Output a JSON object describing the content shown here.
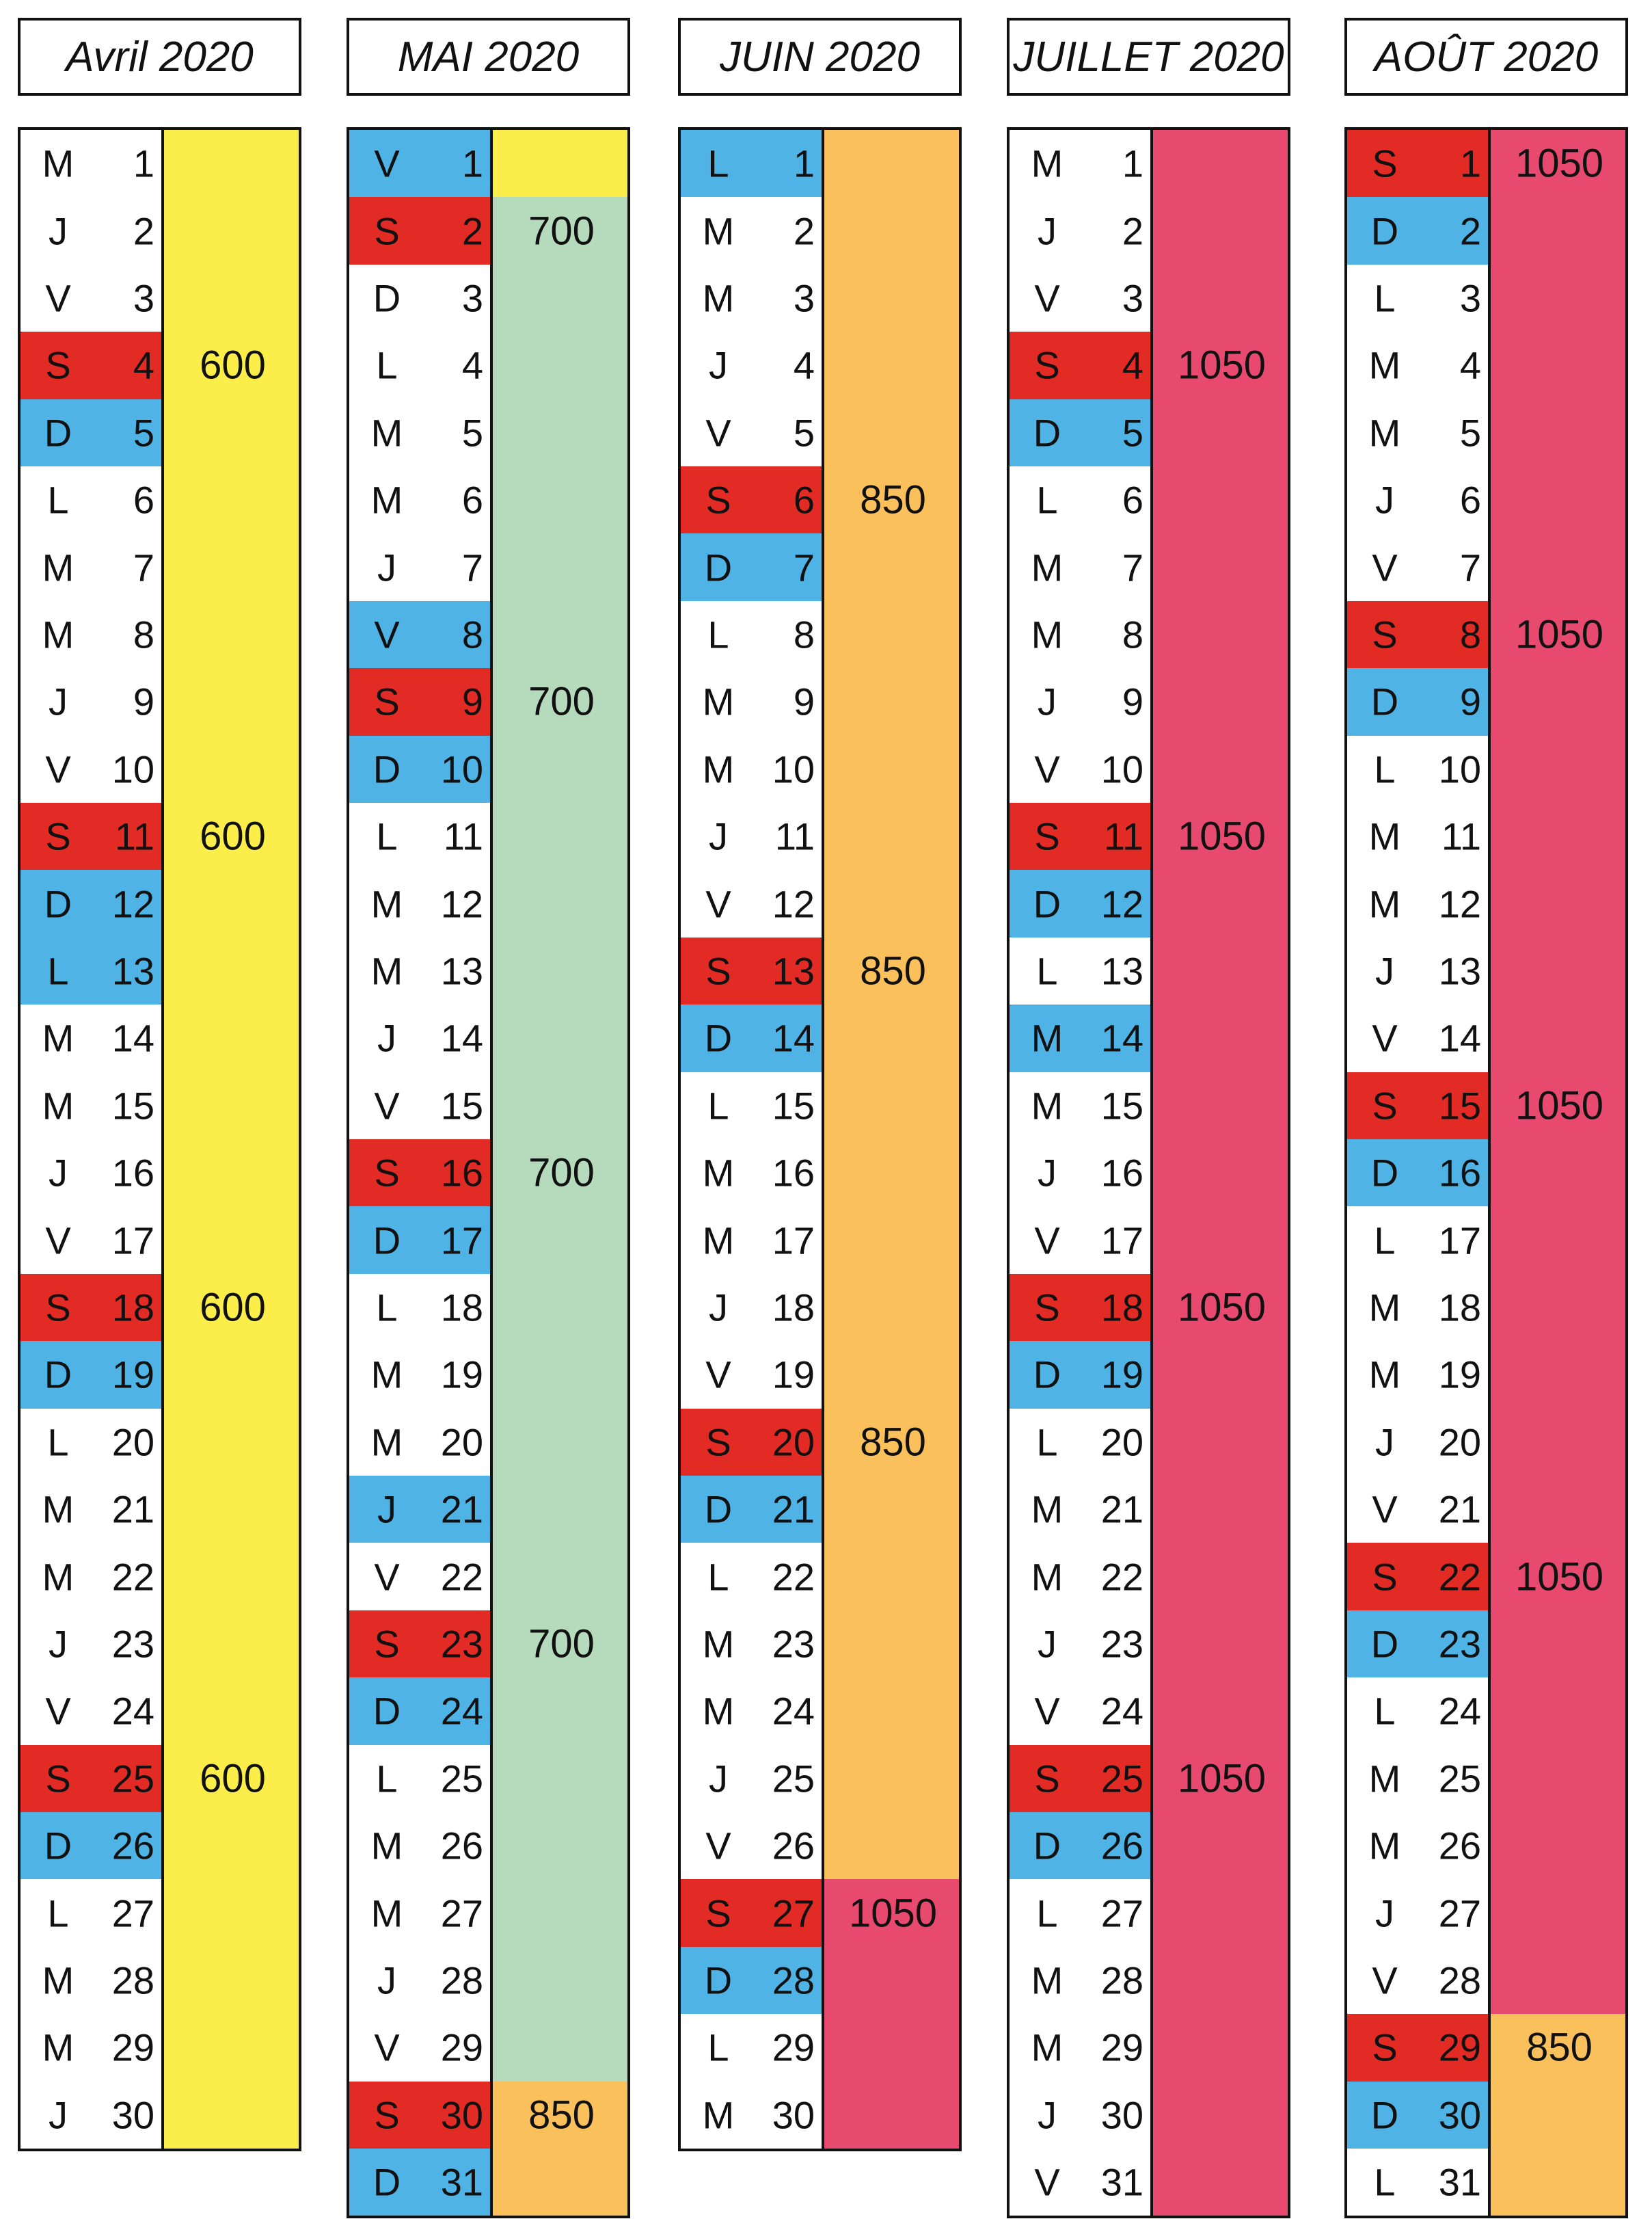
{
  "colors": {
    "saturday": "#e32b25",
    "sunday_or_holiday": "#4fb3e6",
    "yellow": "#fbee4b",
    "green": "#b5dbbc",
    "orange": "#f9c05c",
    "pink": "#e8496f"
  },
  "months": [
    {
      "title": "Avril 2020",
      "days": [
        {
          "l": "M",
          "n": "1"
        },
        {
          "l": "J",
          "n": "2"
        },
        {
          "l": "V",
          "n": "3"
        },
        {
          "l": "S",
          "n": "4",
          "t": "sat"
        },
        {
          "l": "D",
          "n": "5",
          "t": "sun"
        },
        {
          "l": "L",
          "n": "6"
        },
        {
          "l": "M",
          "n": "7"
        },
        {
          "l": "M",
          "n": "8"
        },
        {
          "l": "J",
          "n": "9"
        },
        {
          "l": "V",
          "n": "10"
        },
        {
          "l": "S",
          "n": "11",
          "t": "sat"
        },
        {
          "l": "D",
          "n": "12",
          "t": "sun"
        },
        {
          "l": "L",
          "n": "13",
          "t": "sun"
        },
        {
          "l": "M",
          "n": "14"
        },
        {
          "l": "M",
          "n": "15"
        },
        {
          "l": "J",
          "n": "16"
        },
        {
          "l": "V",
          "n": "17"
        },
        {
          "l": "S",
          "n": "18",
          "t": "sat"
        },
        {
          "l": "D",
          "n": "19",
          "t": "sun"
        },
        {
          "l": "L",
          "n": "20"
        },
        {
          "l": "M",
          "n": "21"
        },
        {
          "l": "M",
          "n": "22"
        },
        {
          "l": "J",
          "n": "23"
        },
        {
          "l": "V",
          "n": "24"
        },
        {
          "l": "S",
          "n": "25",
          "t": "sat"
        },
        {
          "l": "D",
          "n": "26",
          "t": "sun"
        },
        {
          "l": "L",
          "n": "27"
        },
        {
          "l": "M",
          "n": "28"
        },
        {
          "l": "M",
          "n": "29"
        },
        {
          "l": "J",
          "n": "30"
        }
      ],
      "segments": [
        {
          "from": 1,
          "to": 30,
          "color": "yellow"
        }
      ],
      "prices": [
        {
          "day": 4,
          "text": "600"
        },
        {
          "day": 11,
          "text": "600"
        },
        {
          "day": 18,
          "text": "600"
        },
        {
          "day": 25,
          "text": "600"
        }
      ]
    },
    {
      "title": "MAI 2020",
      "days": [
        {
          "l": "V",
          "n": "1",
          "t": "sun"
        },
        {
          "l": "S",
          "n": "2",
          "t": "sat"
        },
        {
          "l": "D",
          "n": "3"
        },
        {
          "l": "L",
          "n": "4"
        },
        {
          "l": "M",
          "n": "5"
        },
        {
          "l": "M",
          "n": "6"
        },
        {
          "l": "J",
          "n": "7"
        },
        {
          "l": "V",
          "n": "8",
          "t": "sun"
        },
        {
          "l": "S",
          "n": "9",
          "t": "sat"
        },
        {
          "l": "D",
          "n": "10",
          "t": "sun"
        },
        {
          "l": "L",
          "n": "11"
        },
        {
          "l": "M",
          "n": "12"
        },
        {
          "l": "M",
          "n": "13"
        },
        {
          "l": "J",
          "n": "14"
        },
        {
          "l": "V",
          "n": "15"
        },
        {
          "l": "S",
          "n": "16",
          "t": "sat"
        },
        {
          "l": "D",
          "n": "17",
          "t": "sun"
        },
        {
          "l": "L",
          "n": "18"
        },
        {
          "l": "M",
          "n": "19"
        },
        {
          "l": "M",
          "n": "20"
        },
        {
          "l": "J",
          "n": "21",
          "t": "sun"
        },
        {
          "l": "V",
          "n": "22"
        },
        {
          "l": "S",
          "n": "23",
          "t": "sat"
        },
        {
          "l": "D",
          "n": "24",
          "t": "sun"
        },
        {
          "l": "L",
          "n": "25"
        },
        {
          "l": "M",
          "n": "26"
        },
        {
          "l": "M",
          "n": "27"
        },
        {
          "l": "J",
          "n": "28"
        },
        {
          "l": "V",
          "n": "29"
        },
        {
          "l": "S",
          "n": "30",
          "t": "sat"
        },
        {
          "l": "D",
          "n": "31",
          "t": "sun"
        }
      ],
      "segments": [
        {
          "from": 1,
          "to": 1,
          "color": "yellow"
        },
        {
          "from": 2,
          "to": 29,
          "color": "green"
        },
        {
          "from": 30,
          "to": 31,
          "color": "orange"
        }
      ],
      "prices": [
        {
          "day": 2,
          "text": "700"
        },
        {
          "day": 9,
          "text": "700"
        },
        {
          "day": 16,
          "text": "700"
        },
        {
          "day": 23,
          "text": "700"
        },
        {
          "day": 30,
          "text": "850"
        }
      ]
    },
    {
      "title": "JUIN 2020",
      "days": [
        {
          "l": "L",
          "n": "1",
          "t": "sun"
        },
        {
          "l": "M",
          "n": "2"
        },
        {
          "l": "M",
          "n": "3"
        },
        {
          "l": "J",
          "n": "4"
        },
        {
          "l": "V",
          "n": "5"
        },
        {
          "l": "S",
          "n": "6",
          "t": "sat"
        },
        {
          "l": "D",
          "n": "7",
          "t": "sun"
        },
        {
          "l": "L",
          "n": "8"
        },
        {
          "l": "M",
          "n": "9"
        },
        {
          "l": "M",
          "n": "10"
        },
        {
          "l": "J",
          "n": "11"
        },
        {
          "l": "V",
          "n": "12"
        },
        {
          "l": "S",
          "n": "13",
          "t": "sat"
        },
        {
          "l": "D",
          "n": "14",
          "t": "sun"
        },
        {
          "l": "L",
          "n": "15"
        },
        {
          "l": "M",
          "n": "16"
        },
        {
          "l": "M",
          "n": "17"
        },
        {
          "l": "J",
          "n": "18"
        },
        {
          "l": "V",
          "n": "19"
        },
        {
          "l": "S",
          "n": "20",
          "t": "sat"
        },
        {
          "l": "D",
          "n": "21",
          "t": "sun"
        },
        {
          "l": "L",
          "n": "22"
        },
        {
          "l": "M",
          "n": "23"
        },
        {
          "l": "M",
          "n": "24"
        },
        {
          "l": "J",
          "n": "25"
        },
        {
          "l": "V",
          "n": "26"
        },
        {
          "l": "S",
          "n": "27",
          "t": "sat"
        },
        {
          "l": "D",
          "n": "28",
          "t": "sun"
        },
        {
          "l": "L",
          "n": "29"
        },
        {
          "l": "M",
          "n": "30"
        }
      ],
      "segments": [
        {
          "from": 1,
          "to": 26,
          "color": "orange"
        },
        {
          "from": 27,
          "to": 30,
          "color": "pink"
        }
      ],
      "prices": [
        {
          "day": 6,
          "text": "850"
        },
        {
          "day": 13,
          "text": "850"
        },
        {
          "day": 20,
          "text": "850"
        },
        {
          "day": 27,
          "text": "1050"
        }
      ]
    },
    {
      "title": "JUILLET 2020",
      "days": [
        {
          "l": "M",
          "n": "1"
        },
        {
          "l": "J",
          "n": "2"
        },
        {
          "l": "V",
          "n": "3"
        },
        {
          "l": "S",
          "n": "4",
          "t": "sat"
        },
        {
          "l": "D",
          "n": "5",
          "t": "sun"
        },
        {
          "l": "L",
          "n": "6"
        },
        {
          "l": "M",
          "n": "7"
        },
        {
          "l": "M",
          "n": "8"
        },
        {
          "l": "J",
          "n": "9"
        },
        {
          "l": "V",
          "n": "10"
        },
        {
          "l": "S",
          "n": "11",
          "t": "sat"
        },
        {
          "l": "D",
          "n": "12",
          "t": "sun"
        },
        {
          "l": "L",
          "n": "13"
        },
        {
          "l": "M",
          "n": "14",
          "t": "sun"
        },
        {
          "l": "M",
          "n": "15"
        },
        {
          "l": "J",
          "n": "16"
        },
        {
          "l": "V",
          "n": "17"
        },
        {
          "l": "S",
          "n": "18",
          "t": "sat"
        },
        {
          "l": "D",
          "n": "19",
          "t": "sun"
        },
        {
          "l": "L",
          "n": "20"
        },
        {
          "l": "M",
          "n": "21"
        },
        {
          "l": "M",
          "n": "22"
        },
        {
          "l": "J",
          "n": "23"
        },
        {
          "l": "V",
          "n": "24"
        },
        {
          "l": "S",
          "n": "25",
          "t": "sat"
        },
        {
          "l": "D",
          "n": "26",
          "t": "sun"
        },
        {
          "l": "L",
          "n": "27"
        },
        {
          "l": "M",
          "n": "28"
        },
        {
          "l": "M",
          "n": "29"
        },
        {
          "l": "J",
          "n": "30"
        },
        {
          "l": "V",
          "n": "31"
        }
      ],
      "segments": [
        {
          "from": 1,
          "to": 31,
          "color": "pink"
        }
      ],
      "prices": [
        {
          "day": 4,
          "text": "1050"
        },
        {
          "day": 11,
          "text": "1050"
        },
        {
          "day": 18,
          "text": "1050"
        },
        {
          "day": 25,
          "text": "1050"
        }
      ]
    },
    {
      "title": "AOÛT 2020",
      "days": [
        {
          "l": "S",
          "n": "1",
          "t": "sat"
        },
        {
          "l": "D",
          "n": "2",
          "t": "sun"
        },
        {
          "l": "L",
          "n": "3"
        },
        {
          "l": "M",
          "n": "4"
        },
        {
          "l": "M",
          "n": "5"
        },
        {
          "l": "J",
          "n": "6"
        },
        {
          "l": "V",
          "n": "7"
        },
        {
          "l": "S",
          "n": "8",
          "t": "sat"
        },
        {
          "l": "D",
          "n": "9",
          "t": "sun"
        },
        {
          "l": "L",
          "n": "10"
        },
        {
          "l": "M",
          "n": "11"
        },
        {
          "l": "M",
          "n": "12"
        },
        {
          "l": "J",
          "n": "13"
        },
        {
          "l": "V",
          "n": "14"
        },
        {
          "l": "S",
          "n": "15",
          "t": "sat"
        },
        {
          "l": "D",
          "n": "16",
          "t": "sun"
        },
        {
          "l": "L",
          "n": "17"
        },
        {
          "l": "M",
          "n": "18"
        },
        {
          "l": "M",
          "n": "19"
        },
        {
          "l": "J",
          "n": "20"
        },
        {
          "l": "V",
          "n": "21"
        },
        {
          "l": "S",
          "n": "22",
          "t": "sat"
        },
        {
          "l": "D",
          "n": "23",
          "t": "sun"
        },
        {
          "l": "L",
          "n": "24"
        },
        {
          "l": "M",
          "n": "25"
        },
        {
          "l": "M",
          "n": "26"
        },
        {
          "l": "J",
          "n": "27"
        },
        {
          "l": "V",
          "n": "28"
        },
        {
          "l": "S",
          "n": "29",
          "t": "sat"
        },
        {
          "l": "D",
          "n": "30",
          "t": "sun"
        },
        {
          "l": "L",
          "n": "31"
        }
      ],
      "segments": [
        {
          "from": 1,
          "to": 28,
          "color": "pink"
        },
        {
          "from": 29,
          "to": 31,
          "color": "orange"
        }
      ],
      "prices": [
        {
          "day": 1,
          "text": "1050"
        },
        {
          "day": 8,
          "text": "1050"
        },
        {
          "day": 15,
          "text": "1050"
        },
        {
          "day": 22,
          "text": "1050"
        },
        {
          "day": 29,
          "text": "850"
        }
      ]
    }
  ]
}
